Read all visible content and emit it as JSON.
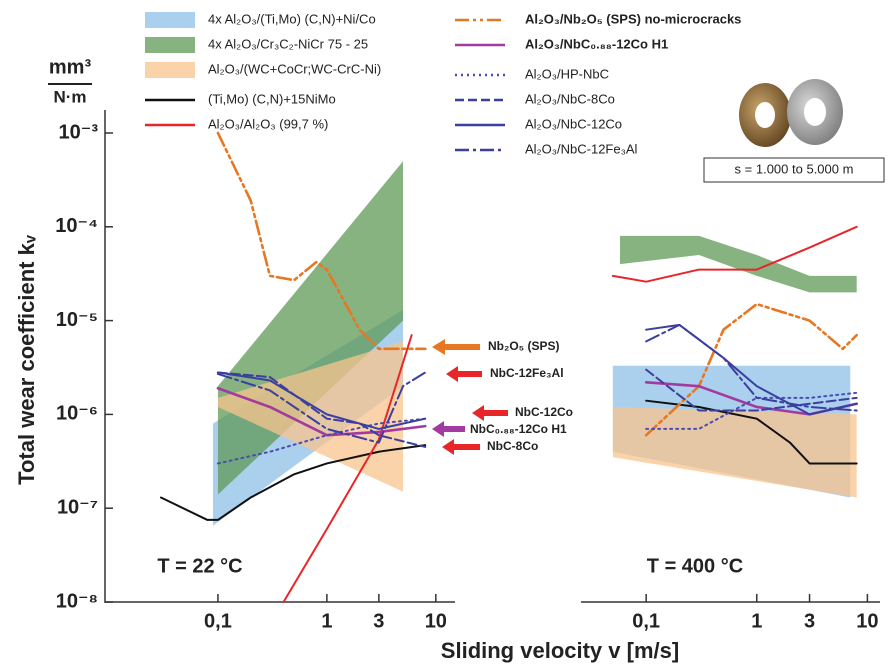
{
  "chart_data": {
    "type": "line",
    "y_label": "Total wear coefficient kᵥ",
    "y_unit_top": "mm³",
    "y_unit_bottom": "N·m",
    "x_label": "Sliding velocity v [m/s]",
    "log_x": true,
    "log_y": true,
    "ylim": [
      1e-08,
      0.001
    ],
    "yticks": [
      {
        "value": 1e-08,
        "label": "10⁻⁸"
      },
      {
        "value": 1e-07,
        "label": "10⁻⁷"
      },
      {
        "value": 1e-06,
        "label": "10⁻⁶"
      },
      {
        "value": 1e-05,
        "label": "10⁻⁵"
      },
      {
        "value": 0.0001,
        "label": "10⁻⁴"
      },
      {
        "value": 0.001,
        "label": "10⁻³"
      }
    ],
    "panels": [
      {
        "label": "T = 22 °C",
        "xlim": [
          0.01,
          15
        ],
        "xticks": [
          {
            "value": 0.1,
            "label": "0,1"
          },
          1,
          3,
          10
        ]
      },
      {
        "label": "T = 400 °C",
        "xlim": [
          0.028,
          13
        ],
        "xticks": [
          {
            "value": 0.1,
            "label": "0,1"
          },
          1,
          3,
          10
        ]
      }
    ],
    "inset_label": "s = 1.000 to 5.000 m",
    "annotations": [
      {
        "text": "Nb₂O₅ (SPS)",
        "color": "#e87722"
      },
      {
        "text": "NbC-12Fe₃Al",
        "color": "#222222"
      },
      {
        "text": "NbC-12Co",
        "color": "#222222"
      },
      {
        "text": "NbC₀.₈₈-12Co H1",
        "color": "#a23aa0"
      },
      {
        "text": "NbC-8Co",
        "color": "#222222"
      }
    ],
    "series": [
      {
        "name": "4x Al₂O₃/(Ti,Mo) (C,N)+Ni/Co",
        "kind": "band",
        "color": "#9cc8ea",
        "opacity": 0.85,
        "panels": [
          {
            "x": [
              0.09,
              5
            ],
            "low": [
              6.5e-08,
              2e-06
            ],
            "high": [
              8e-07,
              1.3e-05
            ]
          },
          {
            "x": [
              0.05,
              7
            ],
            "low": [
              4e-07,
              1.3e-07
            ],
            "high": [
              3.3e-06,
              3.3e-06
            ]
          }
        ]
      },
      {
        "name": "4x Al₂O₃/Cr₃C₂-NiCr 75 - 25",
        "kind": "band",
        "color": "#5f9a57",
        "opacity": 0.75,
        "panels": [
          {
            "x": [
              0.1,
              5
            ],
            "low": [
              1.4e-07,
              1e-05
            ],
            "high": [
              2e-06,
              0.0005
            ]
          },
          {
            "x": [
              0.058,
              0.3,
              1,
              3,
              8
            ],
            "low": [
              4e-05,
              5e-05,
              3e-05,
              2e-05,
              2e-05
            ],
            "high": [
              8e-05,
              8e-05,
              5e-05,
              3e-05,
              3e-05
            ]
          }
        ]
      },
      {
        "name": "Al₂O₃/(WC+CoCr;WC-CrC-Ni)",
        "kind": "band",
        "color": "#f8c48e",
        "opacity": 0.75,
        "panels": [
          {
            "x": [
              0.1,
              5
            ],
            "low": [
              1.2e-06,
              1.5e-07
            ],
            "high": [
              1.5e-06,
              6e-06
            ]
          },
          {
            "x": [
              0.05,
              8
            ],
            "low": [
              3.5e-07,
              1.3e-07
            ],
            "high": [
              1.2e-06,
              1e-06
            ]
          }
        ]
      },
      {
        "name": "(Ti,Mo) (C,N)+15NiMo",
        "kind": "line",
        "color": "#111111",
        "dash": "solid",
        "panels": [
          {
            "x": [
              0.03,
              0.08,
              0.1,
              0.2,
              0.5,
              1,
              3,
              8
            ],
            "values": [
              1.3e-07,
              7.5e-08,
              7.5e-08,
              1.3e-07,
              2.3e-07,
              3e-07,
              4e-07,
              4.7e-07
            ]
          },
          {
            "x": [
              0.1,
              0.3,
              1,
              2,
              3,
              8
            ],
            "values": [
              1.4e-06,
              1.2e-06,
              9e-07,
              5e-07,
              3e-07,
              3e-07
            ]
          }
        ]
      },
      {
        "name": "Al₂O₃/Al₂O₃ (99,7 %)",
        "kind": "line",
        "color": "#e8262a",
        "dash": "solid",
        "panels": [
          {
            "x": [
              0.4,
              1,
              3,
              6
            ],
            "values": [
              1e-08,
              6e-08,
              5.4e-07,
              7e-06
            ]
          },
          {
            "x": [
              0.05,
              0.1,
              0.3,
              1,
              3,
              8
            ],
            "values": [
              3e-05,
              2.6e-05,
              3.5e-05,
              3.5e-05,
              6e-05,
              0.0001
            ]
          }
        ]
      },
      {
        "name": "Al₂O₃/Nb₂O₅ (SPS) no-microcracks",
        "kind": "line",
        "color": "#e87722",
        "dash": "dashdotdot",
        "bold": true,
        "panels": [
          {
            "x": [
              0.1,
              0.2,
              0.3,
              0.5,
              0.8,
              1,
              2,
              3,
              8
            ],
            "values": [
              0.001,
              0.00019,
              3e-05,
              2.7e-05,
              4.2e-05,
              3.5e-05,
              8e-06,
              5e-06,
              5e-06
            ]
          },
          {
            "x": [
              0.1,
              0.3,
              0.5,
              1,
              3,
              6,
              8
            ],
            "values": [
              6e-07,
              2e-06,
              8e-06,
              1.5e-05,
              1e-05,
              5e-06,
              7e-06
            ]
          }
        ]
      },
      {
        "name": "Al₂O₃/NbC₀.₈₈-12Co H1",
        "kind": "line",
        "color": "#a23aa0",
        "dash": "solid",
        "bold": true,
        "panels": [
          {
            "x": [
              0.1,
              0.3,
              1,
              3,
              8
            ],
            "values": [
              1.9e-06,
              1.2e-06,
              6e-07,
              6.5e-07,
              7.5e-07
            ]
          },
          {
            "x": [
              0.1,
              0.3,
              1,
              3,
              8
            ],
            "values": [
              2.2e-06,
              2e-06,
              1.2e-06,
              1e-06,
              1.3e-06
            ]
          }
        ]
      },
      {
        "name": "Al₂O₃/HP-NbC",
        "kind": "line",
        "color": "#4a4cb0",
        "dash": "dotted",
        "panels": [
          {
            "x": [
              0.1,
              0.3,
              1,
              3,
              8
            ],
            "values": [
              3e-07,
              4e-07,
              6e-07,
              8e-07,
              9e-07
            ]
          },
          {
            "x": [
              0.1,
              0.3,
              1,
              3,
              8
            ],
            "values": [
              7e-07,
              7e-07,
              1.5e-06,
              1.5e-06,
              1.7e-06
            ]
          }
        ]
      },
      {
        "name": "Al₂O₃/NbC-8Co",
        "kind": "line",
        "color": "#3b3fa0",
        "dash": "dashed",
        "panels": [
          {
            "x": [
              0.1,
              0.3,
              1,
              2,
              3,
              8
            ],
            "values": [
              2.8e-06,
              2.5e-06,
              9e-07,
              8e-07,
              6e-07,
              4.5e-07
            ]
          },
          {
            "x": [
              0.1,
              0.3,
              1,
              3,
              8
            ],
            "values": [
              3e-06,
              1.1e-06,
              1.1e-06,
              1.3e-06,
              1.5e-06
            ]
          }
        ]
      },
      {
        "name": "Al₂O₃/NbC-12Co",
        "kind": "line",
        "color": "#3b3fa0",
        "dash": "solid",
        "panels": [
          {
            "x": [
              0.1,
              0.3,
              1,
              3,
              8
            ],
            "values": [
              2.8e-06,
              2.3e-06,
              1e-06,
              7e-07,
              9e-07
            ]
          },
          {
            "x": [
              0.1,
              0.2,
              0.5,
              1,
              3,
              8
            ],
            "values": [
              8e-06,
              9e-06,
              4e-06,
              2e-06,
              1e-06,
              1.3e-06
            ]
          }
        ]
      },
      {
        "name": "Al₂O₃/NbC-12Fe₃Al",
        "kind": "line",
        "color": "#3b3fa0",
        "dash": "dashdot",
        "panels": [
          {
            "x": [
              0.1,
              0.3,
              1,
              3,
              5,
              8
            ],
            "values": [
              2.7e-06,
              1.8e-06,
              7e-07,
              5e-07,
              2e-06,
              2.8e-06
            ]
          },
          {
            "x": [
              0.1,
              0.2,
              0.5,
              1,
              3,
              8
            ],
            "values": [
              6e-06,
              9e-06,
              4e-06,
              1.5e-06,
              1.2e-06,
              1.1e-06
            ]
          }
        ]
      }
    ]
  }
}
